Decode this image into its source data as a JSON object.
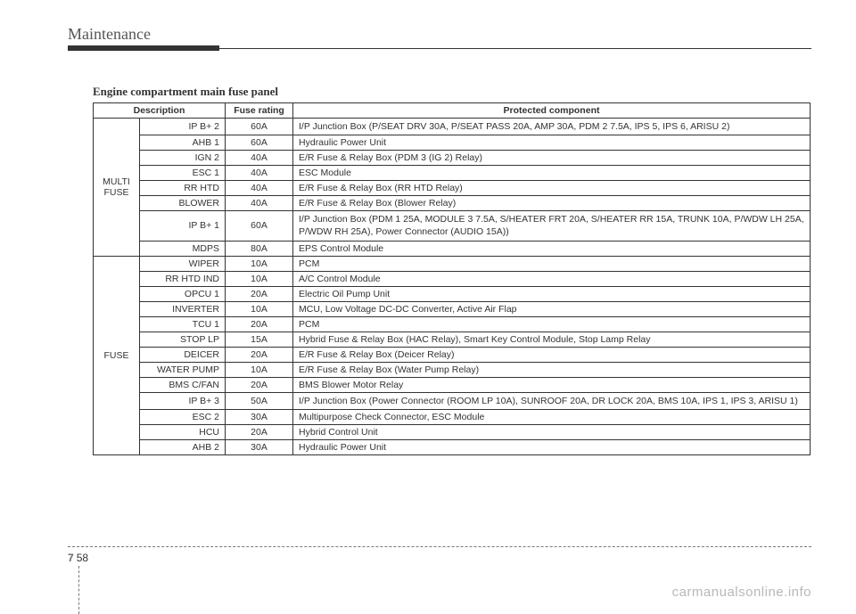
{
  "section_header": "Maintenance",
  "table_title": "Engine compartment main fuse panel",
  "columns": {
    "desc": "Description",
    "rating": "Fuse rating",
    "protected": "Protected component"
  },
  "groups": [
    {
      "label": "MULTI FUSE",
      "rows": [
        {
          "desc": "IP B+ 2",
          "rating": "60A",
          "protected": "I/P Junction Box (P/SEAT DRV 30A, P/SEAT PASS 20A, AMP 30A, PDM 2 7.5A, IPS 5, IPS 6, ARISU 2)",
          "tall": true
        },
        {
          "desc": "AHB 1",
          "rating": "60A",
          "protected": "Hydraulic Power Unit"
        },
        {
          "desc": "IGN 2",
          "rating": "40A",
          "protected": "E/R Fuse & Relay Box (PDM 3 (IG 2) Relay)"
        },
        {
          "desc": "ESC 1",
          "rating": "40A",
          "protected": "ESC Module"
        },
        {
          "desc": "RR HTD",
          "rating": "40A",
          "protected": "E/R Fuse & Relay Box (RR HTD Relay)"
        },
        {
          "desc": "BLOWER",
          "rating": "40A",
          "protected": "E/R Fuse & Relay Box (Blower Relay)"
        },
        {
          "desc": "IP B+ 1",
          "rating": "60A",
          "protected": "I/P Junction Box (PDM 1 25A, MODULE 3 7.5A, S/HEATER FRT 20A, S/HEATER RR 15A, TRUNK 10A, P/WDW LH 25A, P/WDW RH 25A), Power Connector (AUDIO 15A))",
          "tall": true
        },
        {
          "desc": "MDPS",
          "rating": "80A",
          "protected": "EPS Control Module"
        }
      ]
    },
    {
      "label": "FUSE",
      "rows": [
        {
          "desc": "WIPER",
          "rating": "10A",
          "protected": "PCM"
        },
        {
          "desc": "RR HTD IND",
          "rating": "10A",
          "protected": "A/C Control Module"
        },
        {
          "desc": "OPCU 1",
          "rating": "20A",
          "protected": "Electric Oil Pump Unit"
        },
        {
          "desc": "INVERTER",
          "rating": "10A",
          "protected": "MCU, Low Voltage DC-DC Converter, Active Air Flap"
        },
        {
          "desc": "TCU 1",
          "rating": "20A",
          "protected": "PCM"
        },
        {
          "desc": "STOP LP",
          "rating": "15A",
          "protected": "Hybrid Fuse & Relay Box (HAC Relay), Smart Key Control Module, Stop Lamp Relay"
        },
        {
          "desc": "DEICER",
          "rating": "20A",
          "protected": "E/R Fuse & Relay Box (Deicer Relay)"
        },
        {
          "desc": "WATER PUMP",
          "rating": "10A",
          "protected": "E/R Fuse & Relay Box (Water Pump Relay)"
        },
        {
          "desc": "BMS C/FAN",
          "rating": "20A",
          "protected": "BMS Blower Motor Relay"
        },
        {
          "desc": "IP B+ 3",
          "rating": "50A",
          "protected": "I/P Junction Box (Power Connector (ROOM LP 10A), SUNROOF 20A, DR LOCK 20A, BMS 10A, IPS 1, IPS 3, ARISU 1)",
          "tall": true
        },
        {
          "desc": "ESC 2",
          "rating": "30A",
          "protected": "Multipurpose Check Connector, ESC Module"
        },
        {
          "desc": "HCU",
          "rating": "20A",
          "protected": "Hybrid Control Unit"
        },
        {
          "desc": "AHB 2",
          "rating": "30A",
          "protected": "Hydraulic Power Unit"
        }
      ]
    }
  ],
  "page": {
    "chapter": "7",
    "number": "58"
  },
  "watermark": "carmanualsonline.info"
}
